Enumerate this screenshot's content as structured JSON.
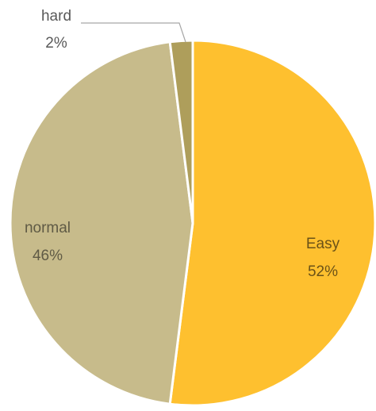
{
  "chart_data": {
    "type": "pie",
    "slices": [
      {
        "label": "Easy",
        "value": 52,
        "value_label": "52%",
        "color": "#FEC02F",
        "label_color": "#6B5217"
      },
      {
        "label": "normal",
        "value": 46,
        "value_label": "46%",
        "color": "#C7BB8B",
        "label_color": "#5F5A45"
      },
      {
        "label": "hard",
        "value": 2,
        "value_label": "2%",
        "color": "#AE9E5B",
        "label_color": "#595959"
      }
    ],
    "start_angle": "12 o'clock",
    "direction": "clockwise",
    "leader_line_color": "#A6A6A6",
    "slice_border_color": "#FFFFFF"
  }
}
